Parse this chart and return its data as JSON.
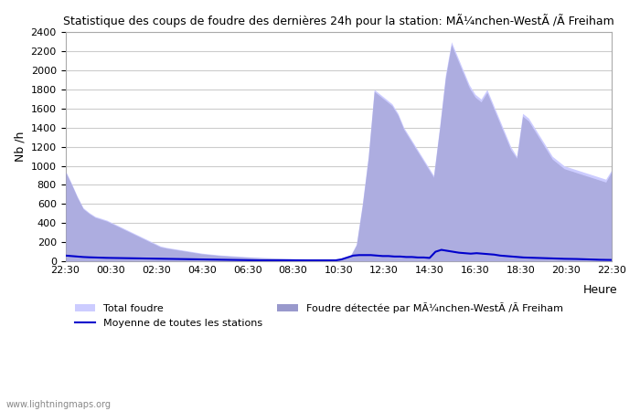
{
  "title": "Statistique des coups de foudre des dernières 24h pour la station: MÃ¼nchen-WestÃ /Ã Freiham",
  "ylabel": "Nb /h",
  "xlabel": "Heure",
  "ylim": [
    0,
    2400
  ],
  "yticks": [
    0,
    200,
    400,
    600,
    800,
    1000,
    1200,
    1400,
    1600,
    1800,
    2000,
    2200,
    2400
  ],
  "xtick_labels": [
    "22:30",
    "00:30",
    "02:30",
    "04:30",
    "06:30",
    "08:30",
    "10:30",
    "12:30",
    "14:30",
    "16:30",
    "18:30",
    "20:30",
    "22:30"
  ],
  "total_foudre_color": "#ccccff",
  "station_foudre_color": "#9999cc",
  "moyenne_color": "#0000cc",
  "background_color": "#ffffff",
  "grid_color": "#cccccc",
  "watermark": "www.lightningmaps.org",
  "legend": {
    "total_foudre": "Total foudre",
    "moyenne": "Moyenne de toutes les stations",
    "station": "Foudre détectée par MÃ¼nchen-WestÃ /Ã Freiham"
  },
  "total_foudre": [
    950,
    820,
    680,
    560,
    510,
    470,
    450,
    430,
    400,
    370,
    340,
    310,
    280,
    250,
    220,
    190,
    160,
    145,
    135,
    125,
    115,
    105,
    95,
    85,
    78,
    72,
    66,
    62,
    58,
    54,
    50,
    46,
    43,
    40,
    38,
    36,
    34,
    32,
    30,
    28,
    26,
    24,
    22,
    20,
    18,
    16,
    18,
    30,
    60,
    180,
    600,
    1100,
    1800,
    1750,
    1700,
    1650,
    1550,
    1400,
    1300,
    1200,
    1100,
    1000,
    900,
    1400,
    1950,
    2300,
    2150,
    2000,
    1850,
    1750,
    1700,
    1800,
    1650,
    1500,
    1350,
    1200,
    1100,
    1550,
    1500,
    1400,
    1300,
    1200,
    1100,
    1050,
    1000,
    980,
    960,
    940,
    920,
    900,
    880,
    860,
    960
  ],
  "station_foudre": [
    940,
    810,
    670,
    550,
    500,
    460,
    440,
    420,
    390,
    360,
    330,
    300,
    270,
    240,
    210,
    180,
    150,
    138,
    128,
    118,
    108,
    98,
    88,
    78,
    72,
    66,
    60,
    56,
    52,
    48,
    45,
    42,
    39,
    36,
    34,
    32,
    30,
    28,
    26,
    24,
    22,
    20,
    18,
    16,
    14,
    12,
    14,
    25,
    55,
    170,
    580,
    1080,
    1780,
    1730,
    1680,
    1630,
    1530,
    1380,
    1280,
    1180,
    1080,
    980,
    880,
    1380,
    1920,
    2270,
    2120,
    1970,
    1820,
    1720,
    1670,
    1770,
    1620,
    1470,
    1320,
    1170,
    1080,
    1520,
    1470,
    1370,
    1270,
    1170,
    1070,
    1020,
    970,
    950,
    930,
    910,
    890,
    870,
    850,
    830,
    940
  ],
  "moyenne": [
    60,
    55,
    50,
    45,
    42,
    40,
    38,
    36,
    35,
    34,
    33,
    32,
    31,
    30,
    29,
    28,
    27,
    26,
    25,
    24,
    23,
    22,
    21,
    20,
    19,
    18,
    17,
    16,
    15,
    14,
    13,
    12,
    11,
    10,
    10,
    10,
    10,
    10,
    10,
    10,
    10,
    10,
    10,
    10,
    10,
    10,
    10,
    20,
    40,
    60,
    65,
    65,
    65,
    60,
    55,
    55,
    50,
    50,
    45,
    45,
    40,
    40,
    35,
    100,
    120,
    110,
    100,
    90,
    85,
    80,
    85,
    80,
    75,
    70,
    60,
    55,
    50,
    45,
    40,
    38,
    36,
    34,
    32,
    30,
    28,
    26,
    25,
    24,
    22,
    20,
    18,
    16,
    15,
    14
  ]
}
